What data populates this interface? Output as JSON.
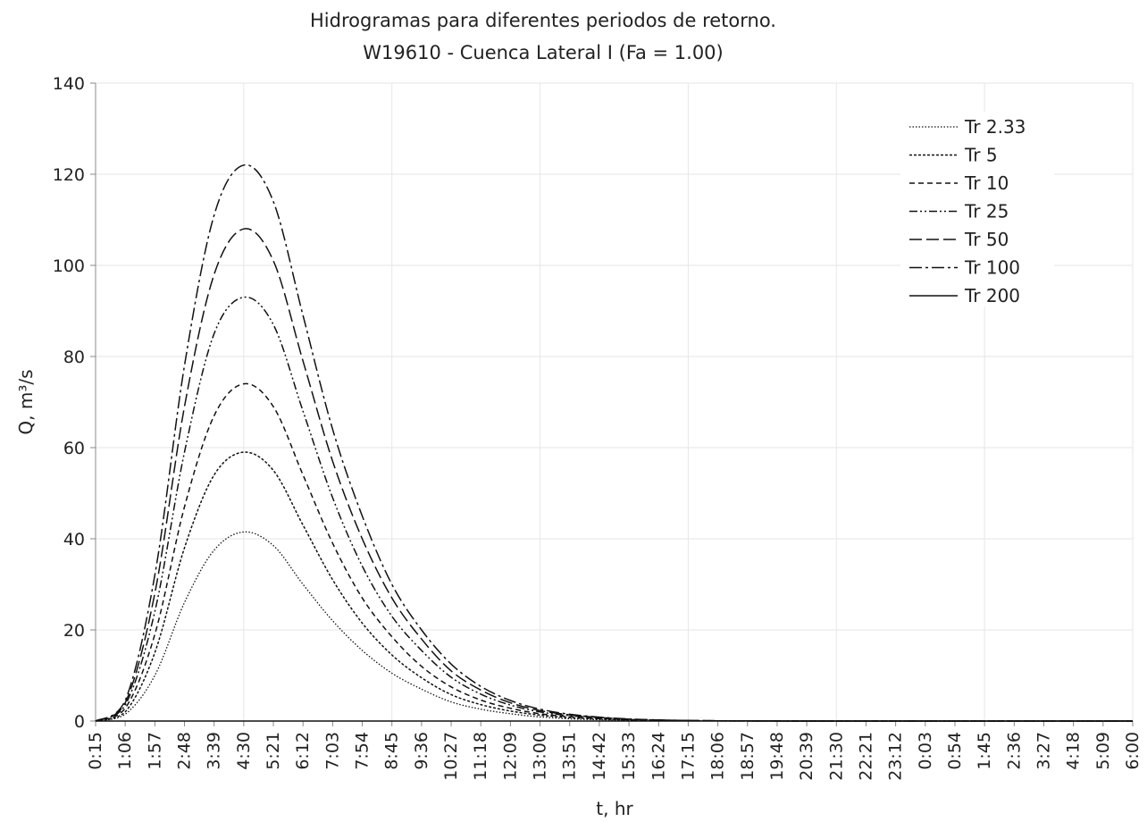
{
  "chart_data": {
    "type": "line",
    "title": "Hidrogramas para diferentes periodos de retorno.",
    "subtitle": "W19610 - Cuenca Lateral I (Fa = 1.00)",
    "xlabel": "t, hr",
    "ylabel": "Q, m³/s",
    "ylim": [
      0,
      140
    ],
    "yticks": [
      "0",
      "20",
      "40",
      "60",
      "80",
      "100",
      "120",
      "140"
    ],
    "grid": true,
    "legend_position": "top-right",
    "x_categories": [
      "0:15",
      "1:06",
      "1:57",
      "2:48",
      "3:39",
      "4:30",
      "5:21",
      "6:12",
      "7:03",
      "7:54",
      "8:45",
      "9:36",
      "10:27",
      "11:18",
      "12:09",
      "13:00",
      "13:51",
      "14:42",
      "15:33",
      "16:24",
      "17:15",
      "18:06",
      "18:57",
      "19:48",
      "20:39",
      "21:30",
      "22:21",
      "23:12",
      "0:03",
      "0:54",
      "1:45",
      "2:36",
      "3:27",
      "4:18",
      "5:09",
      "6:00"
    ],
    "series": [
      {
        "name": "Tr 2.33",
        "style": "dotted",
        "values": [
          0,
          1.5,
          10,
          26,
          37.5,
          41.5,
          38.5,
          30,
          22,
          15.5,
          10.5,
          7,
          4.2,
          2.6,
          1.6,
          0.9,
          0.5,
          0.3,
          0.15,
          0.08,
          0.04,
          0.02,
          0.01,
          0,
          0,
          0,
          0,
          0,
          0,
          0,
          0,
          0,
          0,
          0,
          0,
          0
        ]
      },
      {
        "name": "Tr 5",
        "style": "dash-fine",
        "values": [
          0,
          2,
          15,
          38,
          54,
          59,
          55,
          43,
          31,
          21.5,
          14.5,
          9.5,
          5.8,
          3.6,
          2.2,
          1.3,
          0.75,
          0.42,
          0.22,
          0.12,
          0.06,
          0.03,
          0.01,
          0,
          0,
          0,
          0,
          0,
          0,
          0,
          0,
          0,
          0,
          0,
          0,
          0
        ]
      },
      {
        "name": "Tr 10",
        "style": "dash-short",
        "values": [
          0,
          2.8,
          19,
          47,
          67,
          74,
          69,
          54,
          39,
          27,
          18.5,
          12,
          7.5,
          4.6,
          2.8,
          1.6,
          0.95,
          0.55,
          0.3,
          0.16,
          0.08,
          0.04,
          0.02,
          0.01,
          0,
          0,
          0,
          0,
          0,
          0,
          0,
          0,
          0,
          0,
          0,
          0
        ]
      },
      {
        "name": "Tr 25",
        "style": "dash-dot-dot",
        "values": [
          0,
          3.5,
          24,
          59,
          85,
          93,
          87,
          68,
          49,
          34,
          23,
          15.5,
          9.6,
          5.9,
          3.5,
          2,
          1.2,
          0.7,
          0.38,
          0.2,
          0.1,
          0.05,
          0.02,
          0.01,
          0,
          0,
          0,
          0,
          0,
          0,
          0,
          0,
          0,
          0,
          0,
          0
        ]
      },
      {
        "name": "Tr 50",
        "style": "dash-long",
        "values": [
          0,
          4,
          28,
          69,
          98,
          108,
          101,
          79,
          57,
          40,
          27,
          18,
          11,
          6.8,
          4,
          2.3,
          1.35,
          0.78,
          0.42,
          0.22,
          0.11,
          0.06,
          0.03,
          0.01,
          0,
          0,
          0,
          0,
          0,
          0,
          0,
          0,
          0,
          0,
          0,
          0
        ]
      },
      {
        "name": "Tr 100",
        "style": "dash-dot",
        "values": [
          0,
          4.5,
          32,
          78,
          111,
          122,
          114,
          89,
          64,
          45,
          30,
          20,
          12.5,
          7.6,
          4.5,
          2.6,
          1.5,
          0.86,
          0.46,
          0.24,
          0.12,
          0.06,
          0.03,
          0.01,
          0,
          0,
          0,
          0,
          0,
          0,
          0,
          0,
          0,
          0,
          0,
          0
        ]
      },
      {
        "name": "Tr 200",
        "style": "solid",
        "values": [
          0,
          0,
          0,
          0,
          0,
          0,
          0,
          0,
          0,
          0,
          0,
          0,
          0,
          0,
          0,
          0,
          0,
          0,
          0,
          0,
          0,
          0,
          0,
          0,
          0,
          0,
          0,
          0,
          0,
          0,
          0,
          0,
          0,
          0,
          0,
          0
        ]
      }
    ],
    "colors": {
      "line": "#111111",
      "grid": "#e6e6e6",
      "axis": "#8a8a8a",
      "text": "#222222"
    }
  }
}
